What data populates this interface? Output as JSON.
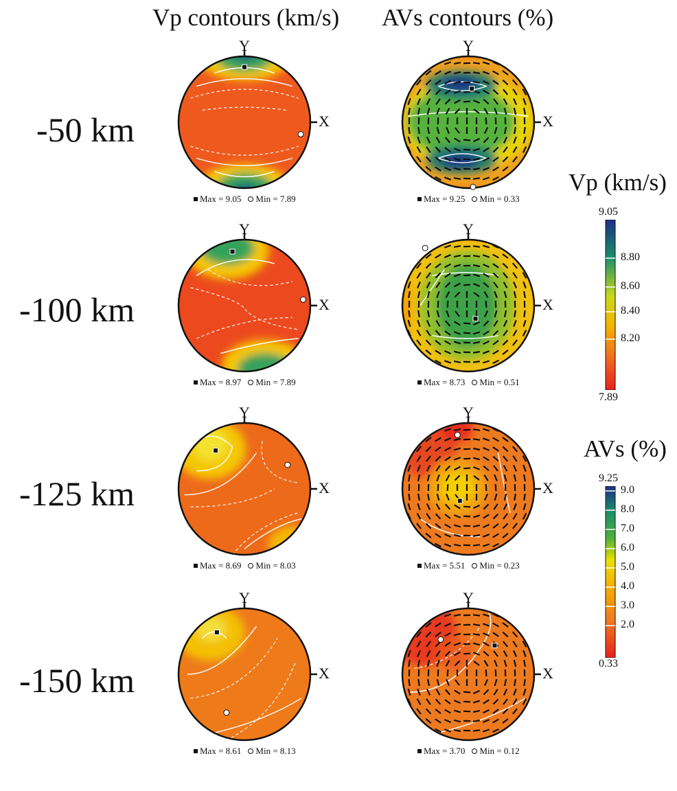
{
  "titles": {
    "vp": "Vp contours (km/s)",
    "avs": "AVs contours (%)"
  },
  "axes": {
    "y": "Y",
    "x": "X"
  },
  "rows": [
    {
      "depth": "-50 km",
      "vp": {
        "max_label": "Max = 9.05",
        "min_label": "Min = 7.89",
        "max_value": 9.05,
        "min_value": 7.89
      },
      "avs": {
        "max_label": "Max = 9.25",
        "min_label": "Min = 0.33",
        "max_value": 9.25,
        "min_value": 0.33
      }
    },
    {
      "depth": "-100 km",
      "vp": {
        "max_label": "Max = 8.97",
        "min_label": "Min = 7.89",
        "max_value": 8.97,
        "min_value": 7.89
      },
      "avs": {
        "max_label": "Max = 8.73",
        "min_label": "Min = 0.51",
        "max_value": 8.73,
        "min_value": 0.51
      }
    },
    {
      "depth": "-125 km",
      "vp": {
        "max_label": "Max = 8.69",
        "min_label": "Min = 8.03",
        "max_value": 8.69,
        "min_value": 8.03
      },
      "avs": {
        "max_label": "Max = 5.51",
        "min_label": "Min = 0.23",
        "max_value": 5.51,
        "min_value": 0.23
      }
    },
    {
      "depth": "-150 km",
      "vp": {
        "max_label": "Max = 8.61",
        "min_label": "Min = 8.13",
        "max_value": 8.61,
        "min_value": 8.13
      },
      "avs": {
        "max_label": "Max = 3.70",
        "min_label": "Min = 0.12",
        "max_value": 3.7,
        "min_value": 0.12
      }
    }
  ],
  "colorbars": {
    "vp": {
      "title": "Vp (km/s)",
      "top": "9.05",
      "bottom": "7.89",
      "ticks": [
        "8.80",
        "8.60",
        "8.40",
        "8.20"
      ]
    },
    "avs": {
      "title": "AVs (%)",
      "top": "9.25",
      "bottom": "0.33",
      "ticks": [
        "9.0",
        "8.0",
        "7.0",
        "6.0",
        "5.0",
        "4.0",
        "3.0",
        "2.0"
      ]
    }
  },
  "colors": {
    "low": "#e8211c",
    "mid_low": "#f08a1a",
    "mid": "#f5d800",
    "mid_high": "#2aa84a",
    "high": "#1c2f86"
  }
}
